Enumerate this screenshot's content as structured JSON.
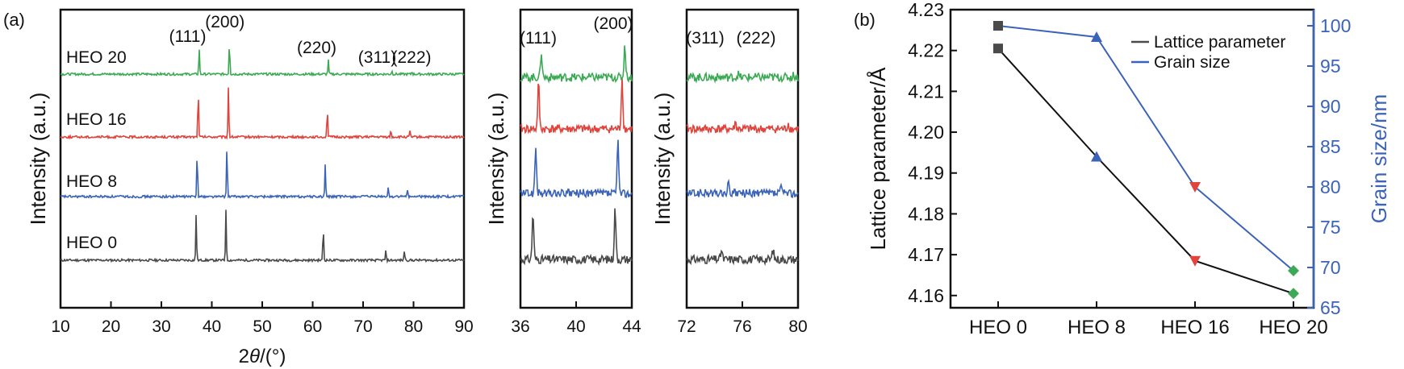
{
  "panel_labels": {
    "a": "(a)",
    "b": "(b)"
  },
  "chart_data": [
    {
      "type": "line",
      "id": "xrd-full",
      "title": "",
      "xlabel": "2θ/(°)",
      "xlabel_base": "2",
      "xlabel_italic": "θ",
      "xlabel_suffix": "/(°)",
      "ylabel": "Intensity (a.u.)",
      "xlim": [
        10,
        90
      ],
      "xticks": [
        10,
        20,
        30,
        40,
        50,
        60,
        70,
        80,
        90
      ],
      "series": [
        {
          "name": "HEO 0",
          "color": "#4a4a4a",
          "peaks": [
            [
              36.9,
              1.0
            ],
            [
              42.8,
              1.1
            ],
            [
              62.1,
              0.72
            ],
            [
              74.5,
              0.2
            ],
            [
              78.2,
              0.22
            ]
          ]
        },
        {
          "name": "HEO 8",
          "color": "#3b63b8",
          "peaks": [
            [
              37.1,
              1.0
            ],
            [
              43.0,
              1.1
            ],
            [
              62.5,
              0.7
            ],
            [
              75.0,
              0.2
            ],
            [
              78.8,
              0.16
            ]
          ]
        },
        {
          "name": "HEO 16",
          "color": "#e0443c",
          "peaks": [
            [
              37.3,
              1.0
            ],
            [
              43.3,
              1.1
            ],
            [
              62.9,
              0.62
            ],
            [
              75.5,
              0.14
            ],
            [
              79.3,
              0.12
            ]
          ]
        },
        {
          "name": "HEO 20",
          "color": "#3caa55",
          "peaks": [
            [
              37.5,
              0.55
            ],
            [
              43.5,
              0.7
            ],
            [
              63.1,
              0.3
            ],
            [
              75.7,
              0.07
            ],
            [
              79.7,
              0.06
            ]
          ]
        }
      ],
      "annotations": [
        "(111)",
        "(200)",
        "(220)",
        "(311)",
        "(222)"
      ]
    },
    {
      "type": "line",
      "id": "xrd-zoom-1",
      "ylabel": "Intensity (a.u.)",
      "xlim": [
        36,
        44
      ],
      "xticks": [
        36,
        40,
        44
      ],
      "annotations": [
        "(111)",
        "(200)"
      ]
    },
    {
      "type": "line",
      "id": "xrd-zoom-2",
      "ylabel": "Intensity (a.u.)",
      "xlim": [
        72,
        80
      ],
      "xticks": [
        72,
        76,
        80
      ],
      "annotations": [
        "(311)",
        "(222)"
      ]
    },
    {
      "type": "line",
      "id": "lattice-grain",
      "categories": [
        "HEO 0",
        "HEO 8",
        "HEO 16",
        "HEO 20"
      ],
      "ylabel": "Lattice parameter/Å",
      "y2label": "Grain size/nm",
      "ylim": [
        4.157,
        4.23
      ],
      "yticks": [
        "4.16",
        "4.17",
        "4.18",
        "4.19",
        "4.20",
        "4.21",
        "4.22",
        "4.23"
      ],
      "y2lim": [
        65,
        102
      ],
      "y2ticks": [
        "65",
        "70",
        "75",
        "80",
        "85",
        "90",
        "95",
        "100"
      ],
      "series": [
        {
          "name": "Lattice parameter",
          "axis": "left",
          "color": "#111111",
          "values": [
            4.2205,
            4.194,
            4.1685,
            4.1605
          ]
        },
        {
          "name": "Grain size",
          "axis": "right",
          "color": "#3b63b8",
          "values": [
            100.0,
            98.6,
            80.0,
            69.6
          ]
        }
      ],
      "marker_colors": [
        "#4a4a4a",
        "#3b63b8",
        "#e0443c",
        "#3caa55"
      ],
      "legend": [
        "Lattice parameter",
        "Grain size"
      ],
      "legend_position": "top-right"
    }
  ]
}
